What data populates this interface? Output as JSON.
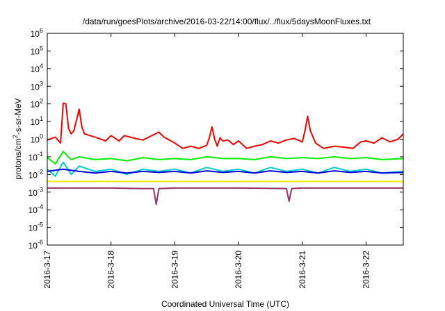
{
  "chart_data": {
    "type": "line",
    "title": "/data/run/goesPlots/archive/2016-03-22/14:00/flux/../flux/5daysMoonFluxes.txt",
    "xlabel": "Coordinated Universal Time (UTC)",
    "ylabel": "protons/cm2-s-sr-MeV",
    "ylabel_parts": [
      "protons/cm",
      "2",
      "-s-sr-MeV"
    ],
    "yscale": "log",
    "ylim": [
      1e-06,
      1000000.0
    ],
    "xlim": [
      "2016-03-17T00:00",
      "2016-03-22T14:00"
    ],
    "x_ticks": [
      "2016-3-17",
      "2016-3-18",
      "2016-3-19",
      "2016-3-20",
      "2016-3-21",
      "2016-3-22"
    ],
    "y_ticks": [
      {
        "value": 1e-06,
        "base": "10",
        "exp": "-6"
      },
      {
        "value": 1e-05,
        "base": "10",
        "exp": "-5"
      },
      {
        "value": 0.0001,
        "base": "10",
        "exp": "-4"
      },
      {
        "value": 0.001,
        "base": "10",
        "exp": "-3"
      },
      {
        "value": 0.01,
        "base": "10",
        "exp": "-2"
      },
      {
        "value": 0.1,
        "base": "10",
        "exp": "-1"
      },
      {
        "value": 1,
        "base": "10",
        "exp": "0"
      },
      {
        "value": 10.0,
        "base": "10",
        "exp": "1"
      },
      {
        "value": 100.0,
        "base": "10",
        "exp": "2"
      },
      {
        "value": 1000.0,
        "base": "10",
        "exp": "3"
      },
      {
        "value": 10000.0,
        "base": "10",
        "exp": "4"
      },
      {
        "value": 100000.0,
        "base": "10",
        "exp": "5"
      },
      {
        "value": 1000000.0,
        "base": "10",
        "exp": "6"
      }
    ],
    "grid": false,
    "legend": "none",
    "series": [
      {
        "color": "#ee0000",
        "style": "red",
        "points": [
          [
            "2016-03-17T00:00",
            0.9
          ],
          [
            "2016-03-17T03:00",
            1.3
          ],
          [
            "2016-03-17T05:00",
            0.6
          ],
          [
            "2016-03-17T06:00",
            110
          ],
          [
            "2016-03-17T07:00",
            100
          ],
          [
            "2016-03-17T08:00",
            4
          ],
          [
            "2016-03-17T09:00",
            2
          ],
          [
            "2016-03-17T10:00",
            3
          ],
          [
            "2016-03-17T12:00",
            50
          ],
          [
            "2016-03-17T13:00",
            5
          ],
          [
            "2016-03-17T14:00",
            2
          ],
          [
            "2016-03-17T18:00",
            1.3
          ],
          [
            "2016-03-17T22:00",
            0.8
          ],
          [
            "2016-03-18T00:00",
            1.6
          ],
          [
            "2016-03-18T03:00",
            0.8
          ],
          [
            "2016-03-18T05:00",
            1.6
          ],
          [
            "2016-03-18T09:00",
            1.1
          ],
          [
            "2016-03-18T12:00",
            0.9
          ],
          [
            "2016-03-18T15:00",
            1.5
          ],
          [
            "2016-03-18T18:00",
            2.5
          ],
          [
            "2016-03-18T20:00",
            1.3
          ],
          [
            "2016-03-19T00:00",
            0.6
          ],
          [
            "2016-03-19T03:00",
            0.3
          ],
          [
            "2016-03-19T06:00",
            0.4
          ],
          [
            "2016-03-19T09:00",
            0.3
          ],
          [
            "2016-03-19T12:00",
            0.45
          ],
          [
            "2016-03-19T13:00",
            1.2
          ],
          [
            "2016-03-19T14:00",
            5
          ],
          [
            "2016-03-19T15:00",
            1
          ],
          [
            "2016-03-19T16:00",
            0.4
          ],
          [
            "2016-03-19T17:00",
            1.2
          ],
          [
            "2016-03-19T18:00",
            0.8
          ],
          [
            "2016-03-19T20:00",
            0.9
          ],
          [
            "2016-03-19T22:00",
            0.5
          ],
          [
            "2016-03-20T00:00",
            0.8
          ],
          [
            "2016-03-20T03:00",
            0.3
          ],
          [
            "2016-03-20T06:00",
            0.4
          ],
          [
            "2016-03-20T09:00",
            0.5
          ],
          [
            "2016-03-20T12:00",
            0.8
          ],
          [
            "2016-03-20T15:00",
            0.6
          ],
          [
            "2016-03-20T18:00",
            0.9
          ],
          [
            "2016-03-20T21:00",
            1.1
          ],
          [
            "2016-03-21T00:00",
            0.7
          ],
          [
            "2016-03-21T01:00",
            3
          ],
          [
            "2016-03-21T02:00",
            20
          ],
          [
            "2016-03-21T03:00",
            3
          ],
          [
            "2016-03-21T05:00",
            0.6
          ],
          [
            "2016-03-21T08:00",
            0.3
          ],
          [
            "2016-03-21T12:00",
            0.4
          ],
          [
            "2016-03-21T16:00",
            0.35
          ],
          [
            "2016-03-21T19:00",
            0.3
          ],
          [
            "2016-03-21T22:00",
            0.7
          ],
          [
            "2016-03-22T00:00",
            0.8
          ],
          [
            "2016-03-22T03:00",
            0.6
          ],
          [
            "2016-03-22T06:00",
            1.2
          ],
          [
            "2016-03-22T09:00",
            0.7
          ],
          [
            "2016-03-22T12:00",
            1
          ],
          [
            "2016-03-22T14:00",
            2
          ]
        ]
      },
      {
        "color": "#00ee00",
        "style": "green",
        "points": [
          [
            "2016-03-17T00:00",
            0.09
          ],
          [
            "2016-03-17T03:00",
            0.04
          ],
          [
            "2016-03-17T06:00",
            0.2
          ],
          [
            "2016-03-17T09:00",
            0.07
          ],
          [
            "2016-03-17T12:00",
            0.1
          ],
          [
            "2016-03-17T18:00",
            0.07
          ],
          [
            "2016-03-18T00:00",
            0.08
          ],
          [
            "2016-03-18T06:00",
            0.06
          ],
          [
            "2016-03-18T12:00",
            0.09
          ],
          [
            "2016-03-18T18:00",
            0.07
          ],
          [
            "2016-03-19T00:00",
            0.08
          ],
          [
            "2016-03-19T06:00",
            0.07
          ],
          [
            "2016-03-19T12:00",
            0.1
          ],
          [
            "2016-03-19T18:00",
            0.08
          ],
          [
            "2016-03-20T00:00",
            0.08
          ],
          [
            "2016-03-20T06:00",
            0.07
          ],
          [
            "2016-03-20T12:00",
            0.1
          ],
          [
            "2016-03-20T18:00",
            0.08
          ],
          [
            "2016-03-21T00:00",
            0.09
          ],
          [
            "2016-03-21T06:00",
            0.08
          ],
          [
            "2016-03-21T12:00",
            0.1
          ],
          [
            "2016-03-21T18:00",
            0.08
          ],
          [
            "2016-03-22T00:00",
            0.09
          ],
          [
            "2016-03-22T06:00",
            0.07
          ],
          [
            "2016-03-22T14:00",
            0.08
          ]
        ]
      },
      {
        "color": "#00cccc",
        "style": "cyan",
        "points": [
          [
            "2016-03-17T00:00",
            0.02
          ],
          [
            "2016-03-17T03:00",
            0.008
          ],
          [
            "2016-03-17T06:00",
            0.05
          ],
          [
            "2016-03-17T09:00",
            0.01
          ],
          [
            "2016-03-17T12:00",
            0.03
          ],
          [
            "2016-03-17T18:00",
            0.015
          ],
          [
            "2016-03-18T00:00",
            0.02
          ],
          [
            "2016-03-18T06:00",
            0.01
          ],
          [
            "2016-03-18T12:00",
            0.02
          ],
          [
            "2016-03-18T18:00",
            0.015
          ],
          [
            "2016-03-19T00:00",
            0.02
          ],
          [
            "2016-03-19T06:00",
            0.012
          ],
          [
            "2016-03-19T12:00",
            0.025
          ],
          [
            "2016-03-19T18:00",
            0.015
          ],
          [
            "2016-03-20T00:00",
            0.02
          ],
          [
            "2016-03-20T06:00",
            0.012
          ],
          [
            "2016-03-20T12:00",
            0.025
          ],
          [
            "2016-03-20T18:00",
            0.015
          ],
          [
            "2016-03-21T00:00",
            0.02
          ],
          [
            "2016-03-21T06:00",
            0.012
          ],
          [
            "2016-03-21T12:00",
            0.025
          ],
          [
            "2016-03-21T18:00",
            0.015
          ],
          [
            "2016-03-22T00:00",
            0.02
          ],
          [
            "2016-03-22T06:00",
            0.012
          ],
          [
            "2016-03-22T14:00",
            0.015
          ]
        ]
      },
      {
        "color": "#0000dd",
        "style": "blue",
        "points": [
          [
            "2016-03-17T00:00",
            0.015
          ],
          [
            "2016-03-17T06:00",
            0.02
          ],
          [
            "2016-03-17T12:00",
            0.015
          ],
          [
            "2016-03-17T18:00",
            0.012
          ],
          [
            "2016-03-18T00:00",
            0.015
          ],
          [
            "2016-03-18T06:00",
            0.012
          ],
          [
            "2016-03-18T12:00",
            0.015
          ],
          [
            "2016-03-18T18:00",
            0.013
          ],
          [
            "2016-03-19T00:00",
            0.015
          ],
          [
            "2016-03-19T06:00",
            0.012
          ],
          [
            "2016-03-19T12:00",
            0.016
          ],
          [
            "2016-03-19T18:00",
            0.013
          ],
          [
            "2016-03-20T00:00",
            0.015
          ],
          [
            "2016-03-20T06:00",
            0.012
          ],
          [
            "2016-03-20T12:00",
            0.016
          ],
          [
            "2016-03-20T18:00",
            0.013
          ],
          [
            "2016-03-21T00:00",
            0.015
          ],
          [
            "2016-03-21T06:00",
            0.012
          ],
          [
            "2016-03-21T12:00",
            0.016
          ],
          [
            "2016-03-21T18:00",
            0.013
          ],
          [
            "2016-03-22T00:00",
            0.015
          ],
          [
            "2016-03-22T06:00",
            0.012
          ],
          [
            "2016-03-22T14:00",
            0.013
          ]
        ]
      },
      {
        "color": "#ffee00",
        "style": "yellow",
        "points": [
          [
            "2016-03-17T00:00",
            0.004
          ],
          [
            "2016-03-18T00:00",
            0.004
          ],
          [
            "2016-03-19T00:00",
            0.004
          ],
          [
            "2016-03-20T00:00",
            0.004
          ],
          [
            "2016-03-21T00:00",
            0.004
          ],
          [
            "2016-03-22T00:00",
            0.004
          ],
          [
            "2016-03-22T14:00",
            0.004
          ]
        ]
      },
      {
        "color": "#993366",
        "style": "purple",
        "points": [
          [
            "2016-03-17T00:00",
            0.0017
          ],
          [
            "2016-03-18T00:00",
            0.0017
          ],
          [
            "2016-03-18T12:00",
            0.0016
          ],
          [
            "2016-03-18T16:00",
            0.0016
          ],
          [
            "2016-03-18T17:00",
            0.0002
          ],
          [
            "2016-03-18T18:00",
            0.0016
          ],
          [
            "2016-03-19T00:00",
            0.0017
          ],
          [
            "2016-03-20T00:00",
            0.0017
          ],
          [
            "2016-03-20T18:00",
            0.0016
          ],
          [
            "2016-03-20T19:00",
            0.0003
          ],
          [
            "2016-03-20T20:00",
            0.0016
          ],
          [
            "2016-03-21T00:00",
            0.0017
          ],
          [
            "2016-03-22T00:00",
            0.0017
          ],
          [
            "2016-03-22T14:00",
            0.0017
          ]
        ]
      }
    ]
  }
}
